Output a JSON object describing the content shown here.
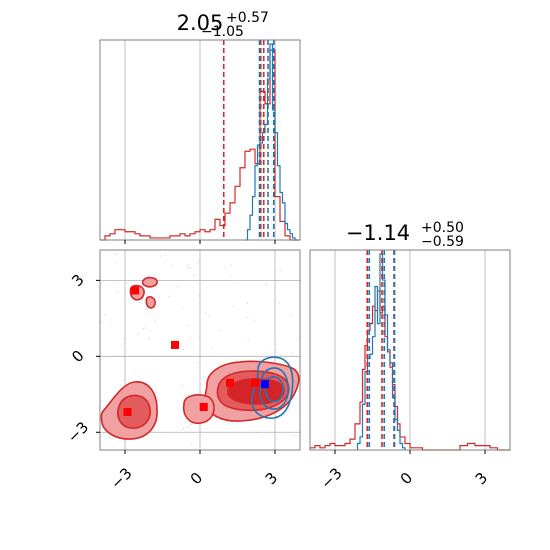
{
  "colors": {
    "red": "#d62728",
    "blue": "#1f77b4",
    "marker_red": "#ff0000",
    "marker_blue": "#0000ff",
    "fill_light": "#f1a1a2",
    "fill_mid": "#e35b5d",
    "fill_dark": "#d42427",
    "grid": "#b0b0b0",
    "axes": "#808080"
  },
  "chart_data": [
    {
      "type": "histogram",
      "panel": "top-left",
      "title": {
        "value": "2.05",
        "plus": "+0.57",
        "minus": "−1.05"
      },
      "xlim": [
        -4,
        4
      ],
      "grid": true,
      "ticks": [
        -3,
        0,
        3
      ],
      "series": [
        {
          "color": "red",
          "bin_edges": [
            -4.0,
            -3.8,
            -3.6,
            -3.4,
            -3.2,
            -3.0,
            -2.8,
            -2.6,
            -2.4,
            -2.2,
            -2.0,
            -1.8,
            -1.6,
            -1.4,
            -1.2,
            -1.0,
            -0.8,
            -0.6,
            -0.4,
            -0.2,
            0.0,
            0.2,
            0.4,
            0.6,
            0.8,
            1.0,
            1.2,
            1.4,
            1.6,
            1.8,
            2.0,
            2.2,
            2.4,
            2.6,
            2.8,
            3.0,
            3.2,
            3.4,
            3.6,
            3.8,
            4.0
          ],
          "counts": [
            0.0,
            0.02,
            0.03,
            0.05,
            0.05,
            0.04,
            0.04,
            0.03,
            0.02,
            0.02,
            0.01,
            0.01,
            0.01,
            0.01,
            0.02,
            0.02,
            0.03,
            0.02,
            0.03,
            0.04,
            0.05,
            0.04,
            0.05,
            0.1,
            0.07,
            0.13,
            0.18,
            0.26,
            0.35,
            0.43,
            0.44,
            0.37,
            0.72,
            0.66,
            0.92,
            0.21,
            0.09,
            0.02,
            0.0,
            0.0
          ]
        },
        {
          "color": "blue",
          "bin_edges": [
            1.8,
            1.9,
            2.0,
            2.1,
            2.2,
            2.3,
            2.4,
            2.5,
            2.6,
            2.7,
            2.8,
            2.9,
            3.0,
            3.1,
            3.2,
            3.3,
            3.4,
            3.5,
            3.6,
            3.7,
            3.8,
            3.9
          ],
          "counts": [
            0.0,
            0.05,
            0.12,
            0.21,
            0.36,
            0.46,
            0.47,
            0.52,
            0.56,
            0.78,
            0.95,
            0.63,
            0.52,
            0.36,
            0.23,
            0.18,
            0.08,
            0.05,
            0.03,
            0.01,
            0.0
          ]
        }
      ],
      "quantiles": [
        {
          "color": "red",
          "values": [
            0.95,
            2.43,
            2.55
          ]
        },
        {
          "color": "blue",
          "values": [
            2.38,
            2.72,
            2.95
          ]
        }
      ]
    },
    {
      "type": "histogram",
      "panel": "bottom-right",
      "title": {
        "value": "−1.14",
        "plus": "+0.50",
        "minus": "−0.59"
      },
      "xlim": [
        -4,
        4
      ],
      "grid": true,
      "ticks": [
        -3,
        0,
        3
      ],
      "series": [
        {
          "color": "red",
          "bin_edges": [
            -4.0,
            -3.8,
            -3.6,
            -3.4,
            -3.2,
            -3.0,
            -2.8,
            -2.6,
            -2.4,
            -2.2,
            -2.0,
            -1.9,
            -1.8,
            -1.7,
            -1.6,
            -1.5,
            -1.4,
            -1.3,
            -1.2,
            -1.1,
            -1.0,
            -0.9,
            -0.8,
            -0.7,
            -0.6,
            -0.5,
            -0.4,
            -0.2,
            0.0,
            0.5,
            1.0,
            1.5,
            2.0,
            2.3,
            2.6,
            2.9,
            3.2,
            3.5,
            4.0
          ],
          "counts": [
            0.01,
            0.02,
            0.01,
            0.02,
            0.03,
            0.02,
            0.02,
            0.03,
            0.05,
            0.12,
            0.22,
            0.37,
            0.48,
            0.55,
            0.58,
            0.66,
            0.64,
            0.73,
            0.63,
            0.66,
            0.52,
            0.45,
            0.38,
            0.3,
            0.2,
            0.12,
            0.06,
            0.03,
            0.01,
            0.0,
            0.0,
            0.0,
            0.02,
            0.03,
            0.02,
            0.02,
            0.01,
            0.0
          ]
        },
        {
          "color": "blue",
          "bin_edges": [
            -2.1,
            -2.0,
            -1.9,
            -1.8,
            -1.7,
            -1.6,
            -1.5,
            -1.4,
            -1.3,
            -1.2,
            -1.1,
            -1.0,
            -0.9,
            -0.8,
            -0.7,
            -0.6,
            -0.5,
            -0.4,
            -0.3,
            -0.2
          ],
          "counts": [
            0.03,
            0.06,
            0.21,
            0.36,
            0.42,
            0.44,
            0.52,
            0.75,
            0.58,
            0.9,
            0.78,
            0.62,
            0.46,
            0.4,
            0.24,
            0.14,
            0.09,
            0.03,
            0.01
          ]
        }
      ],
      "quantiles": [
        {
          "color": "red",
          "values": [
            -1.71,
            -1.12,
            -0.64
          ]
        },
        {
          "color": "blue",
          "values": [
            -1.63,
            -1.03,
            -0.62
          ]
        }
      ]
    },
    {
      "type": "contour",
      "panel": "bottom-left",
      "xlim": [
        -4,
        4
      ],
      "ylim": [
        -3.7,
        4.2
      ],
      "grid": true,
      "xticks": [
        -3,
        0,
        3
      ],
      "yticks": [
        -3,
        0,
        3
      ],
      "markers": [
        {
          "x": -2.6,
          "y": 2.6,
          "color": "marker_red"
        },
        {
          "x": -1.0,
          "y": 0.45,
          "color": "marker_red"
        },
        {
          "x": -2.9,
          "y": -2.2,
          "color": "marker_red"
        },
        {
          "x": 0.15,
          "y": -2.0,
          "color": "marker_red"
        },
        {
          "x": 1.2,
          "y": -1.05,
          "color": "marker_red"
        },
        {
          "x": 2.2,
          "y": -1.05,
          "color": "marker_red"
        },
        {
          "x": 2.6,
          "y": -1.1,
          "color": "marker_blue"
        }
      ]
    }
  ]
}
